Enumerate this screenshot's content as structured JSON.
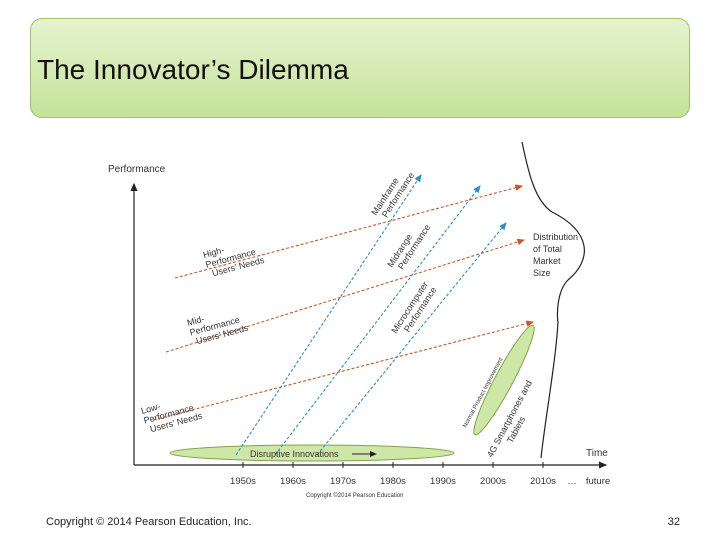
{
  "slide": {
    "title": "The Innovator’s Dilemma",
    "copyright": "Copyright © 2014 Pearson Education, Inc.",
    "page_number": "32"
  },
  "diagram": {
    "y_axis_label": "Performance",
    "x_axis_label": "Time",
    "x_ticks": [
      "1950s",
      "1960s",
      "1970s",
      "1980s",
      "1990s",
      "2000s",
      "2010s",
      "…",
      "future"
    ],
    "image_credit": "Copyright ©2014 Pearson Education",
    "needs": {
      "high": [
        "High-",
        "Performance",
        "Users’ Needs"
      ],
      "mid": [
        "Mid-",
        "Performance",
        "Users’ Needs"
      ],
      "low": [
        "Low-",
        "Performance",
        "Users’ Needs"
      ]
    },
    "technologies": {
      "mainframe": [
        "Mainframe",
        "Performance"
      ],
      "midrange": [
        "Midrange",
        "Performance"
      ],
      "microcomputer": [
        "Microcomputer",
        "Performance"
      ]
    },
    "distribution": [
      "Distribution",
      "of Total",
      "Market",
      "Size"
    ],
    "disruptive_innovations": "Disruptive Innovations",
    "normal_product_improvement": "Normal Product Improvement",
    "smartphones": [
      "4G Smartphones and",
      "Tablets"
    ],
    "colors": {
      "needs_arrow": "#c8582a",
      "tech_arrow": "#2a8fc9",
      "ellipse_fill": "#cfe7a6",
      "ellipse_stroke": "#7aa64a"
    }
  }
}
